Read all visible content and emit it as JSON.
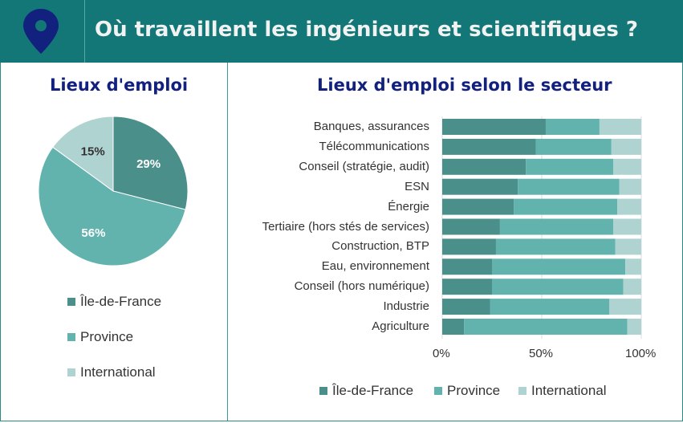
{
  "header": {
    "title": "Où travaillent les ingénieurs et scientifiques ?",
    "icon": "map-pin-icon"
  },
  "colors": {
    "idf": "#4a8f8a",
    "province": "#62b3ae",
    "international": "#afd3d1",
    "header": "#127776",
    "title_blue": "#12207e"
  },
  "chart_data": [
    {
      "type": "pie",
      "title": "Lieux d'emploi",
      "labels": [
        "Île-de-France",
        "Province",
        "International"
      ],
      "values": [
        29,
        56,
        15
      ],
      "data_labels": [
        "29%",
        "56%",
        "15%"
      ],
      "legend": [
        "Île-de-France",
        "Province",
        "International"
      ]
    },
    {
      "type": "bar",
      "orientation": "horizontal",
      "stacked": "100%",
      "title": "Lieux d'emploi selon le secteur",
      "categories": [
        "Banques, assurances",
        "Télécommunications",
        "Conseil (stratégie, audit)",
        "ESN",
        "Énergie",
        "Tertiaire (hors stés de services)",
        "Construction, BTP",
        "Eau, environnement",
        "Conseil (hors numérique)",
        "Industrie",
        "Agriculture"
      ],
      "series": [
        {
          "name": "Île-de-France",
          "values": [
            52,
            47,
            42,
            38,
            36,
            29,
            27,
            25,
            25,
            24,
            11
          ]
        },
        {
          "name": "Province",
          "values": [
            27,
            38,
            44,
            51,
            52,
            57,
            60,
            67,
            66,
            60,
            82
          ]
        },
        {
          "name": "International",
          "values": [
            21,
            15,
            14,
            11,
            12,
            14,
            13,
            8,
            9,
            16,
            7
          ]
        }
      ],
      "xticks": [
        "0%",
        "50%",
        "100%"
      ],
      "xlim": [
        0,
        100
      ],
      "legend_placement": "bottom"
    }
  ]
}
